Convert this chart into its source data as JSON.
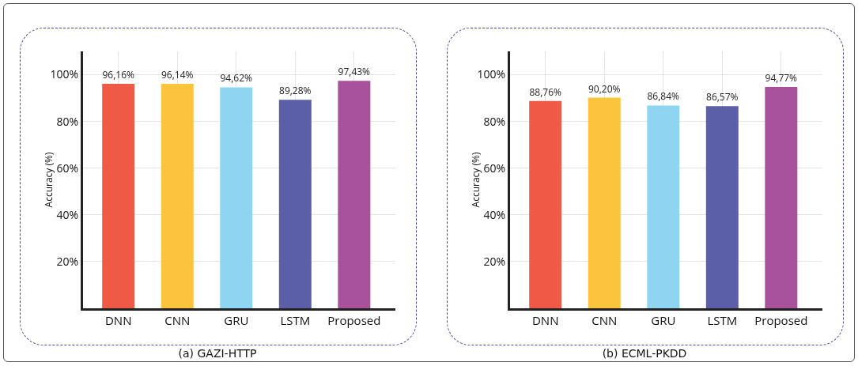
{
  "chart_data": [
    {
      "type": "bar",
      "title": "(a) GAZI-HTTP",
      "ylabel": "Accuracy (%)",
      "categories": [
        "DNN",
        "CNN",
        "GRU",
        "LSTM",
        "Proposed"
      ],
      "values": [
        96.16,
        96.14,
        94.62,
        89.28,
        97.43
      ],
      "value_labels": [
        "96,16%",
        "96,14%",
        "94,62%",
        "89,28%",
        "97,43%"
      ],
      "colors": [
        "#ee5a45",
        "#fcc43c",
        "#8fd4f0",
        "#5a5fa8",
        "#a8529c"
      ],
      "ylim": [
        0,
        110
      ],
      "yticks": [
        {
          "value": 20,
          "label": "20%"
        },
        {
          "value": 40,
          "label": "40%"
        },
        {
          "value": 60,
          "label": "60%"
        },
        {
          "value": 80,
          "label": "80%"
        },
        {
          "value": 100,
          "label": "100%"
        }
      ],
      "grid": true,
      "legend": false
    },
    {
      "type": "bar",
      "title": "(b) ECML-PKDD",
      "ylabel": "Accuracy (%)",
      "categories": [
        "DNN",
        "CNN",
        "GRU",
        "LSTM",
        "Proposed"
      ],
      "values": [
        88.76,
        90.2,
        86.84,
        86.57,
        94.77
      ],
      "value_labels": [
        "88,76%",
        "90,20%",
        "86,84%",
        "86,57%",
        "94,77%"
      ],
      "colors": [
        "#ee5a45",
        "#fcc43c",
        "#8fd4f0",
        "#5a5fa8",
        "#a8529c"
      ],
      "ylim": [
        0,
        110
      ],
      "yticks": [
        {
          "value": 20,
          "label": "20%"
        },
        {
          "value": 40,
          "label": "40%"
        },
        {
          "value": 60,
          "label": "60%"
        },
        {
          "value": 80,
          "label": "80%"
        },
        {
          "value": 100,
          "label": "100%"
        }
      ],
      "grid": true,
      "legend": false
    }
  ]
}
